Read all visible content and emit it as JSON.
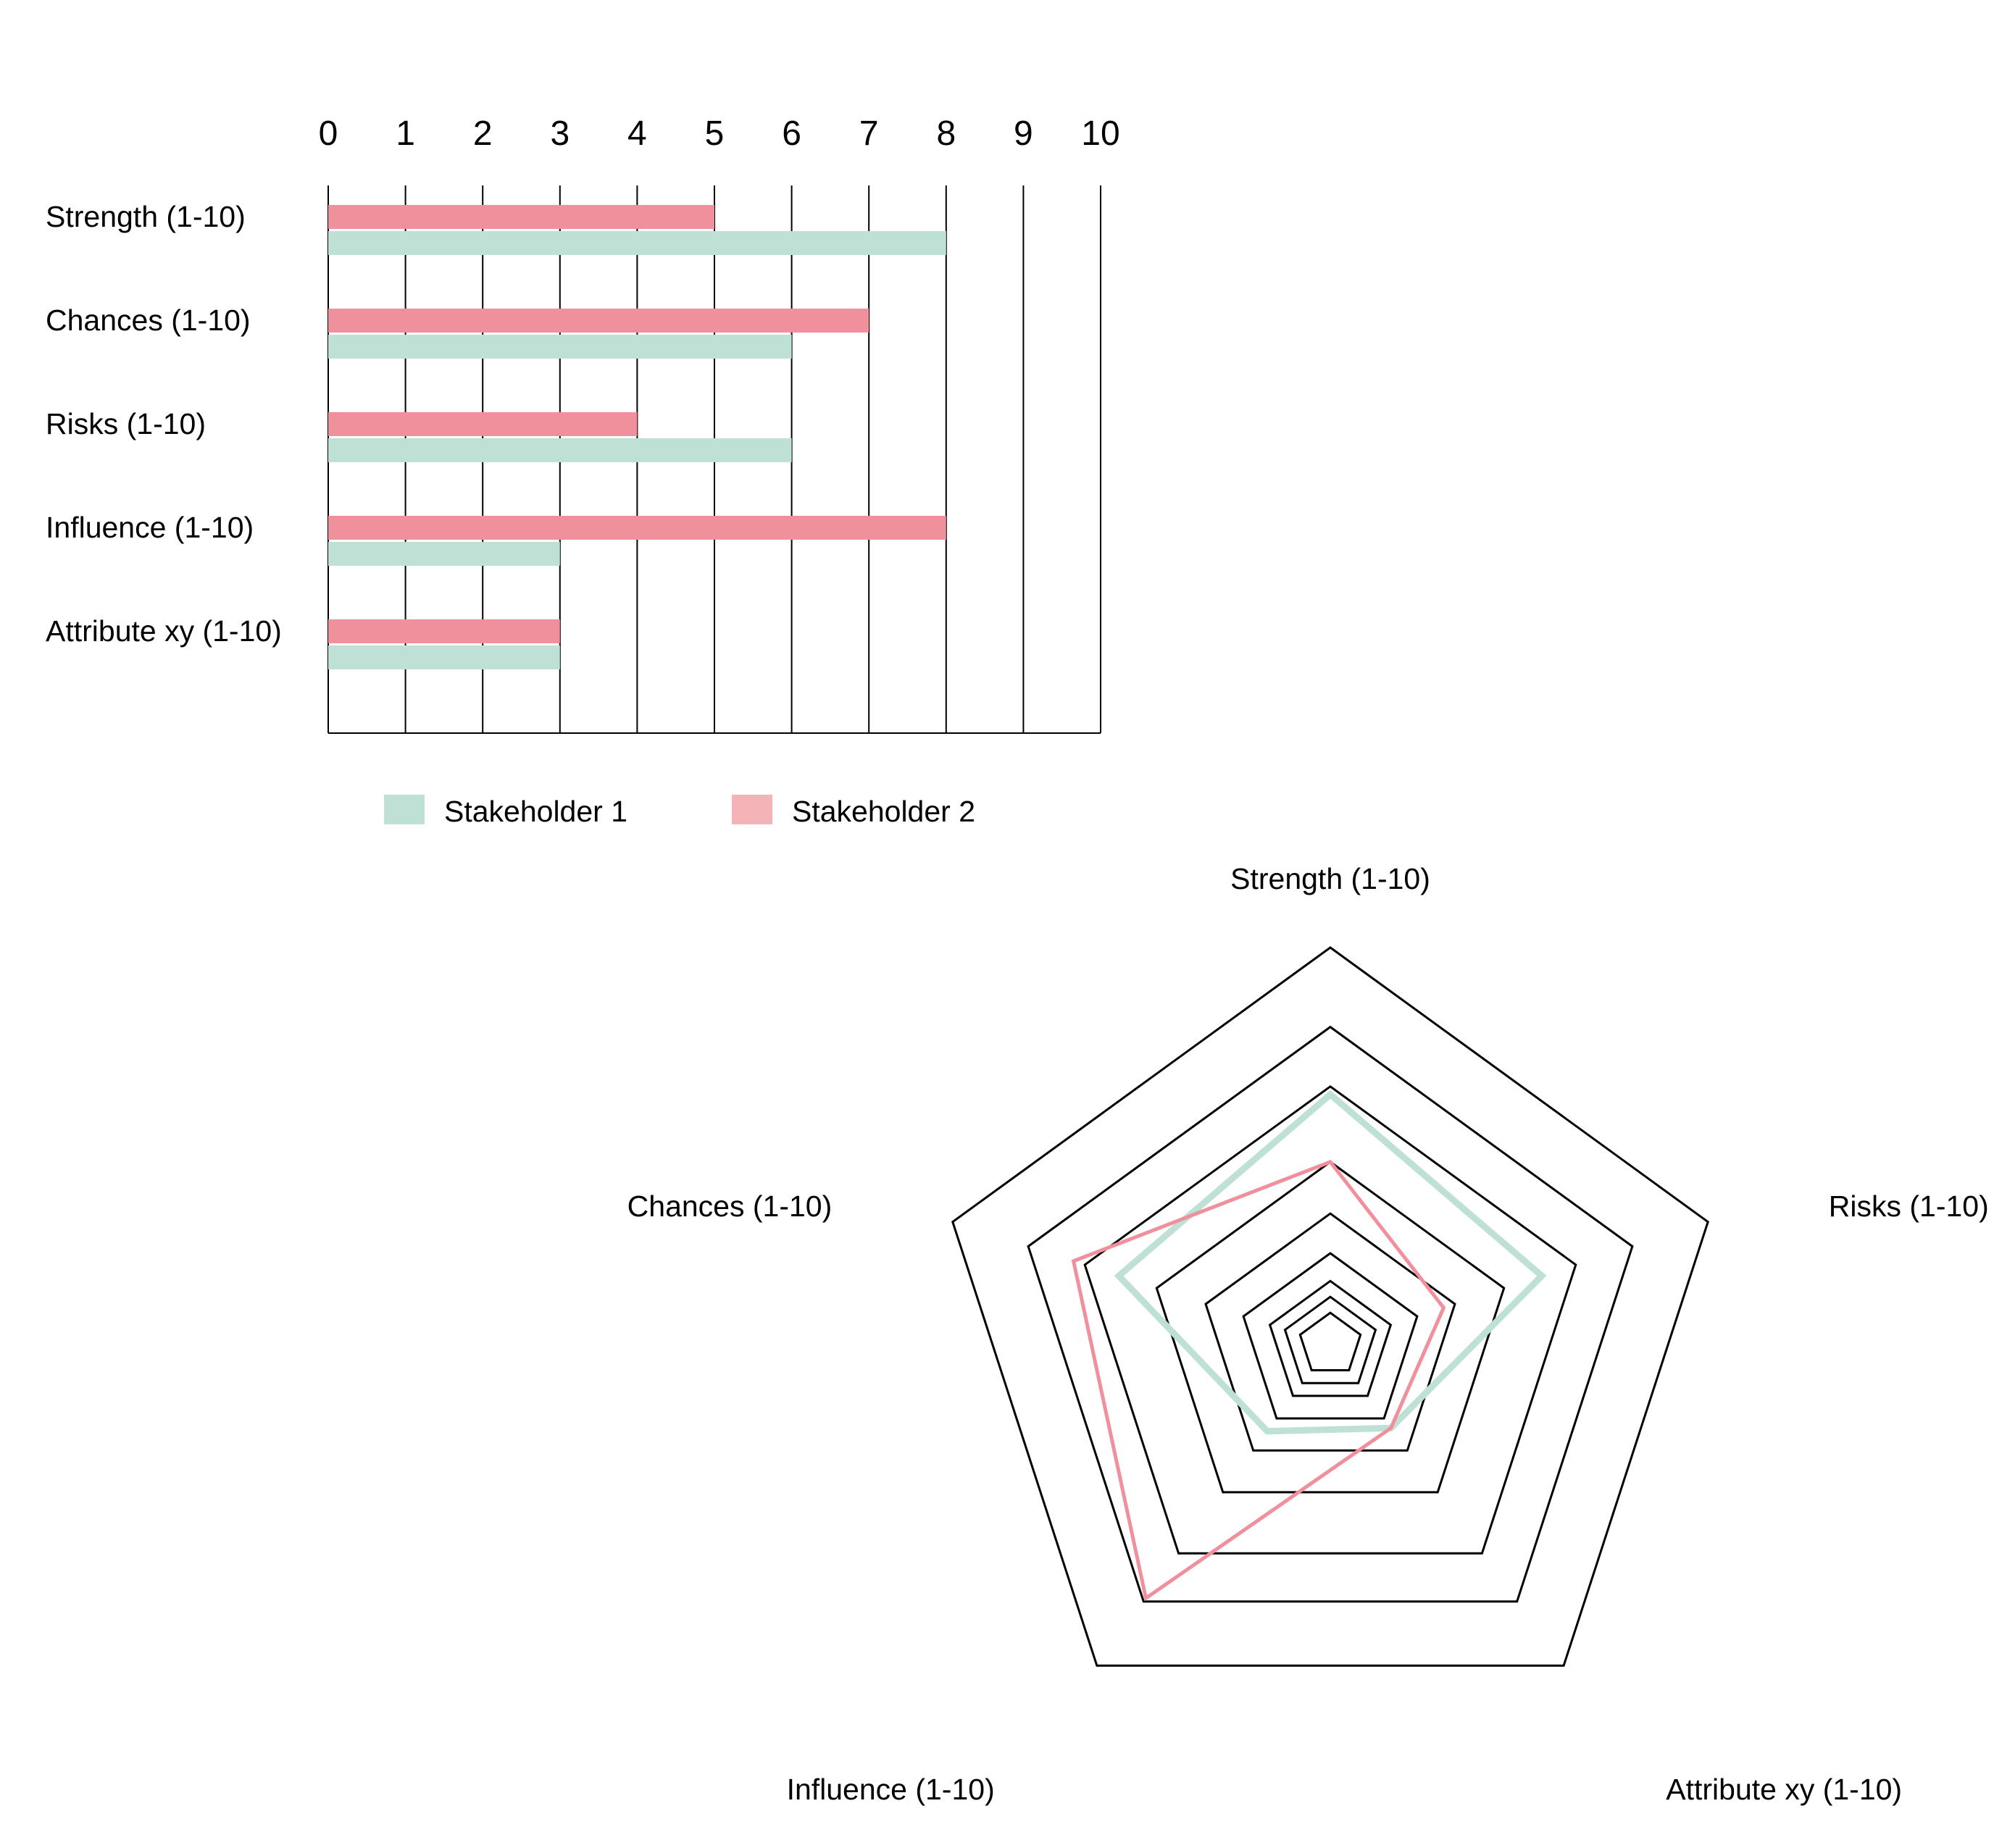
{
  "colors": {
    "stakeholder_1": "#bfe0d4",
    "stakeholder_2": "#f0909c",
    "stakeholder_2_legend": "#f4b4b7",
    "grid": "#000000",
    "background": "#ffffff"
  },
  "chart_data": [
    {
      "type": "bar",
      "orientation": "horizontal",
      "title": "",
      "xlabel": "",
      "ylabel": "",
      "xlim": [
        0,
        10
      ],
      "x_ticks": [
        "0",
        "1",
        "2",
        "3",
        "4",
        "5",
        "6",
        "7",
        "8",
        "9",
        "10"
      ],
      "x_axis_position": "top",
      "grid": true,
      "categories": [
        "Strength (1-10)",
        "Chances (1-10)",
        "Risks (1-10)",
        "Influence (1-10)",
        "Attribute xy (1-10)"
      ],
      "series": [
        {
          "name": "Stakeholder 2",
          "values": [
            5,
            7,
            4,
            8,
            3
          ]
        },
        {
          "name": "Stakeholder 1",
          "values": [
            8,
            6,
            6,
            3,
            3
          ]
        }
      ],
      "legend": {
        "placement": "bottom",
        "items": [
          "Stakeholder 1",
          "Stakeholder 2"
        ]
      }
    },
    {
      "type": "radar",
      "title": "",
      "axes": [
        "Strength (1-10)",
        "Risks (1-10)",
        "Attribute xy (1-10)",
        "Influence (1-10)",
        "Chances (1-10)"
      ],
      "range": [
        0,
        10
      ],
      "grid_levels": [
        0.8,
        1.2,
        1.6,
        2.3,
        3.3,
        4.6,
        6.5,
        8.0,
        10.0
      ],
      "series": [
        {
          "name": "Stakeholder 1",
          "values": [
            6.3,
            5.6,
            2.6,
            2.7,
            5.6
          ]
        },
        {
          "name": "Stakeholder 2",
          "values": [
            4.6,
            3.0,
            2.6,
            7.9,
            6.8
          ]
        }
      ]
    }
  ]
}
